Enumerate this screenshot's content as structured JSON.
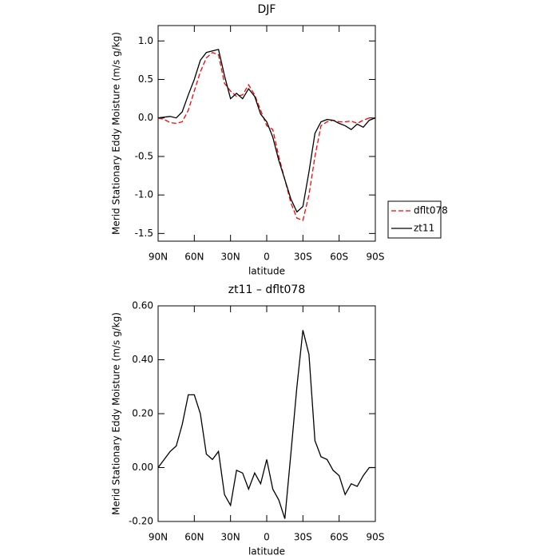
{
  "chart_data": [
    {
      "type": "line",
      "title": "DJF",
      "x_label": "latitude",
      "y_label": "Merid Stationary Eddy Moisture (m/s g/kg)",
      "x": [
        90,
        85,
        80,
        75,
        70,
        65,
        60,
        55,
        50,
        45,
        40,
        35,
        30,
        25,
        20,
        15,
        10,
        5,
        0,
        -5,
        -10,
        -15,
        -20,
        -25,
        -30,
        -35,
        -40,
        -45,
        -50,
        -55,
        -60,
        -65,
        -70,
        -75,
        -80,
        -85,
        -90
      ],
      "series": [
        {
          "name": "dflt078",
          "color": "#ff0000",
          "dash": true,
          "values": [
            0.0,
            -0.02,
            -0.06,
            -0.07,
            -0.05,
            0.1,
            0.35,
            0.6,
            0.78,
            0.85,
            0.82,
            0.45,
            0.35,
            0.28,
            0.3,
            0.43,
            0.3,
            0.1,
            -0.1,
            -0.15,
            -0.5,
            -0.8,
            -1.1,
            -1.3,
            -1.33,
            -1.0,
            -0.5,
            -0.1,
            -0.05,
            -0.03,
            -0.05,
            -0.05,
            -0.04,
            -0.07,
            -0.03,
            0.0,
            0.0
          ]
        },
        {
          "name": "zt11",
          "color": "#000000",
          "dash": false,
          "values": [
            0.0,
            0.01,
            0.02,
            0.0,
            0.08,
            0.3,
            0.5,
            0.75,
            0.85,
            0.87,
            0.89,
            0.55,
            0.25,
            0.32,
            0.25,
            0.38,
            0.28,
            0.05,
            -0.05,
            -0.25,
            -0.55,
            -0.8,
            -1.05,
            -1.22,
            -1.15,
            -0.7,
            -0.2,
            -0.05,
            -0.02,
            -0.03,
            -0.07,
            -0.1,
            -0.15,
            -0.08,
            -0.12,
            -0.03,
            0.0
          ]
        }
      ],
      "xlim": [
        90,
        -90
      ],
      "xticks": [
        {
          "value": 90,
          "label": "90N"
        },
        {
          "value": 60,
          "label": "60N"
        },
        {
          "value": 30,
          "label": "30N"
        },
        0,
        {
          "value": -30,
          "label": "30S"
        },
        {
          "value": -60,
          "label": "60S"
        },
        {
          "value": -90,
          "label": "90S"
        }
      ],
      "ylim": [
        -1.6,
        1.2
      ],
      "yticks": [
        {
          "value": 1,
          "label": "1.0"
        },
        0.5,
        {
          "value": 0,
          "label": "0.0"
        },
        -0.5,
        {
          "value": -1,
          "label": "-1.0"
        },
        -1.5
      ],
      "legend": "outside-right"
    },
    {
      "type": "line",
      "title": "zt11 – dflt078",
      "x_label": "latitude",
      "y_label": "Merid Stationary Eddy Moisture (m/s g/kg)",
      "x": [
        90,
        85,
        80,
        75,
        70,
        65,
        60,
        55,
        50,
        45,
        40,
        35,
        30,
        25,
        20,
        15,
        10,
        5,
        0,
        -5,
        -10,
        -15,
        -20,
        -25,
        -30,
        -35,
        -40,
        -45,
        -50,
        -55,
        -60,
        -65,
        -70,
        -75,
        -80,
        -85,
        -90
      ],
      "color": "#000000",
      "values": [
        0.0,
        0.03,
        0.06,
        0.08,
        0.16,
        0.27,
        0.27,
        0.2,
        0.05,
        0.03,
        0.06,
        -0.1,
        -0.14,
        -0.01,
        -0.02,
        -0.08,
        -0.02,
        -0.06,
        0.03,
        -0.08,
        -0.12,
        -0.19,
        0.05,
        0.3,
        0.51,
        0.42,
        0.1,
        0.04,
        0.03,
        -0.01,
        -0.03,
        -0.1,
        -0.06,
        -0.07,
        -0.03,
        0.0,
        0.0
      ],
      "xlim": [
        90,
        -90
      ],
      "xticks": [
        {
          "value": 90,
          "label": "90N"
        },
        {
          "value": 60,
          "label": "60N"
        },
        {
          "value": 30,
          "label": "30N"
        },
        0,
        {
          "value": -30,
          "label": "30S"
        },
        {
          "value": -60,
          "label": "60S"
        },
        {
          "value": -90,
          "label": "90S"
        }
      ],
      "ylim": [
        -0.2,
        0.6
      ],
      "yticks": [
        {
          "value": 0.6,
          "label": "0.60"
        },
        {
          "value": 0.4,
          "label": "0.40"
        },
        {
          "value": 0.2,
          "label": "0.20"
        },
        {
          "value": 0,
          "label": "0.00"
        },
        {
          "value": -0.2,
          "label": "-0.20"
        }
      ]
    }
  ]
}
